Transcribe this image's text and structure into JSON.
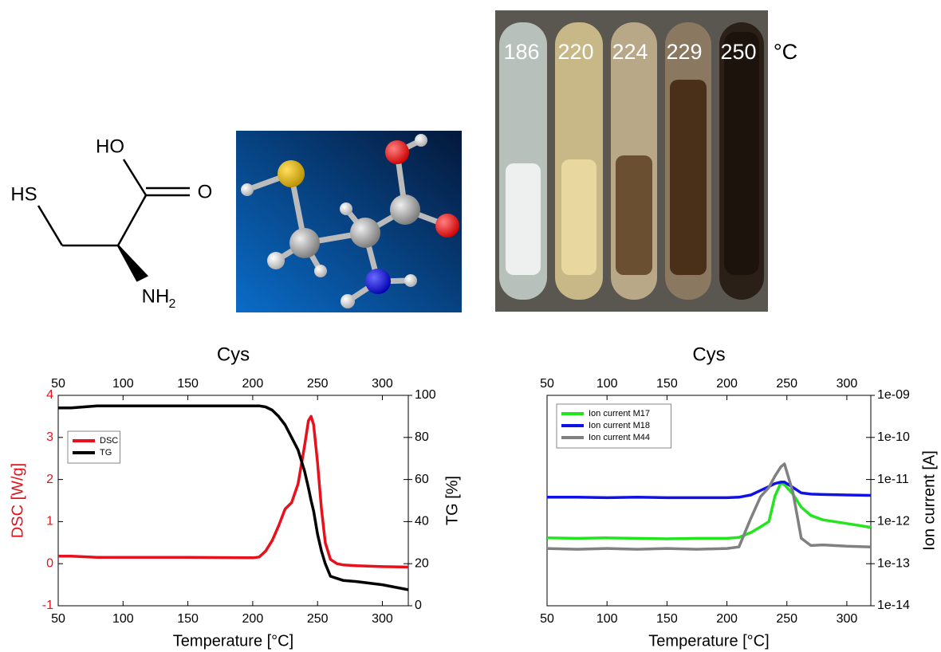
{
  "structure": {
    "hs": "HS",
    "ho": "HO",
    "o": "O",
    "nh": "NH",
    "sub": "2"
  },
  "photo": {
    "temperatures": [
      "186",
      "220",
      "224",
      "229",
      "250"
    ],
    "unit": "°C"
  },
  "chart_data": [
    {
      "type": "line",
      "title": "Cys",
      "xlabel": "Temperature [°C]",
      "ylabel": "DSC [W/g]",
      "ylabel_color": "#e8101a",
      "y2label": "TG [%]",
      "xlim": [
        50,
        320
      ],
      "xticks": [
        50,
        100,
        150,
        200,
        250,
        300
      ],
      "ylim": [
        -1,
        4
      ],
      "yticks": [
        -1,
        0,
        1,
        2,
        3,
        4
      ],
      "y2lim": [
        0,
        100
      ],
      "y2ticks": [
        0,
        20,
        40,
        60,
        80,
        100
      ],
      "legend": "upper left",
      "x": [
        50,
        60,
        80,
        100,
        150,
        200,
        205,
        210,
        215,
        220,
        225,
        230,
        235,
        240,
        243,
        245,
        247,
        250,
        253,
        256,
        260,
        265,
        270,
        280,
        300,
        320
      ],
      "series": [
        {
          "name": "DSC",
          "color": "#e8101a",
          "values": [
            0.18,
            0.18,
            0.15,
            0.15,
            0.15,
            0.14,
            0.16,
            0.3,
            0.55,
            0.9,
            1.3,
            1.45,
            1.9,
            2.8,
            3.4,
            3.5,
            3.3,
            2.4,
            1.3,
            0.5,
            0.1,
            0.0,
            -0.03,
            -0.05,
            -0.07,
            -0.08
          ]
        },
        {
          "name": "TG",
          "color": "#000000",
          "axis": "y2",
          "values": [
            94,
            94,
            95,
            95,
            95,
            95,
            95,
            94.5,
            93,
            90,
            86,
            80,
            74,
            64,
            56,
            50,
            45,
            34,
            26,
            20,
            14,
            13,
            12,
            11.5,
            10,
            7.6
          ]
        }
      ]
    },
    {
      "type": "line",
      "title": "Cys",
      "xlabel": "Temperature [°C]",
      "y2label": "Ion current [A]",
      "xlim": [
        50,
        320
      ],
      "xticks": [
        50,
        100,
        150,
        200,
        250,
        300
      ],
      "y2lim": [
        1e-14,
        1e-09
      ],
      "y2scale": "log",
      "y2ticks": [
        {
          "value": 1e-14,
          "label": "1e-14"
        },
        {
          "value": 1e-13,
          "label": "1e-13"
        },
        {
          "value": 1e-12,
          "label": "1e-12"
        },
        {
          "value": 1e-11,
          "label": "1e-11"
        },
        {
          "value": 1e-10,
          "label": "1e-10"
        },
        {
          "value": 1e-09,
          "label": "1e-09"
        }
      ],
      "legend": "upper left",
      "x": [
        50,
        75,
        100,
        125,
        150,
        175,
        200,
        210,
        220,
        228,
        235,
        240,
        245,
        248,
        255,
        262,
        270,
        280,
        300,
        320
      ],
      "series": [
        {
          "name": "Ion current M17",
          "color": "#22e51e",
          "axis": "y2",
          "values": [
            4.1e-13,
            4e-13,
            4.1e-13,
            4e-13,
            3.9e-13,
            4e-13,
            4e-13,
            4.2e-13,
            5.5e-13,
            7.5e-13,
            1e-12,
            4e-12,
            8.3e-12,
            7.5e-12,
            4.5e-12,
            2.2e-12,
            1.4e-12,
            1.1e-12,
            9e-13,
            7.3e-13
          ]
        },
        {
          "name": "Ion current M18",
          "color": "#1010e8",
          "axis": "y2",
          "values": [
            3.8e-12,
            3.8e-12,
            3.7e-12,
            3.8e-12,
            3.7e-12,
            3.7e-12,
            3.7e-12,
            3.8e-12,
            4.3e-12,
            5.5e-12,
            6.8e-12,
            8e-12,
            8.7e-12,
            8.7e-12,
            6.5e-12,
            4.8e-12,
            4.5e-12,
            4.4e-12,
            4.3e-12,
            4.2e-12
          ]
        },
        {
          "name": "Ion current M44",
          "color": "#808080",
          "axis": "y2",
          "values": [
            2.3e-13,
            2.2e-13,
            2.3e-13,
            2.2e-13,
            2.3e-13,
            2.2e-13,
            2.3e-13,
            2.5e-13,
            1.2e-12,
            3.9e-12,
            6.5e-12,
            1.2e-11,
            2e-11,
            2.35e-11,
            5e-12,
            4e-13,
            2.7e-13,
            2.8e-13,
            2.6e-13,
            2.5e-13
          ]
        }
      ]
    }
  ]
}
